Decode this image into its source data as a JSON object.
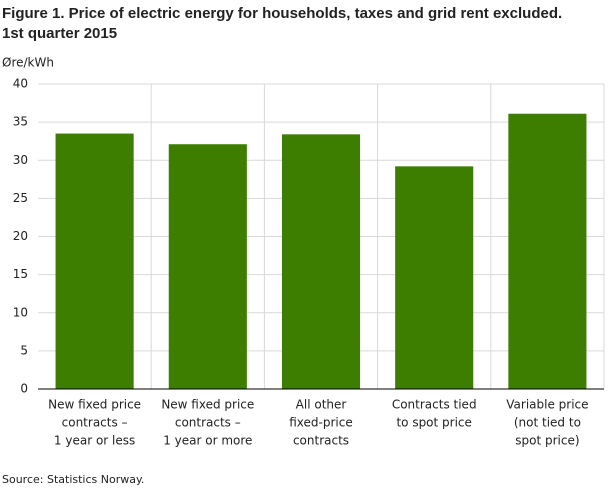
{
  "chart_data": {
    "type": "bar",
    "title": [
      "Figure 1. Price of electric energy for households, taxes and grid rent excluded.",
      "1st quarter 2015"
    ],
    "y_label": "Øre/kWh",
    "categories": [
      [
        "New fixed price",
        "contracts –",
        "1 year or less"
      ],
      [
        "New fixed price",
        "contracts –",
        "1 year or more"
      ],
      [
        "All other",
        "fixed-price",
        "contracts"
      ],
      [
        "Contracts tied",
        "to spot price"
      ],
      [
        "Variable price",
        "(not tied to",
        "spot price)"
      ]
    ],
    "values": [
      33.5,
      32.1,
      33.4,
      29.2,
      36.1
    ],
    "color": "#3d7e00",
    "ylim": [
      0,
      40
    ],
    "yticks": [
      0,
      5,
      10,
      15,
      20,
      25,
      30,
      35,
      40
    ],
    "grid": true,
    "source": "Source: Statistics Norway."
  }
}
